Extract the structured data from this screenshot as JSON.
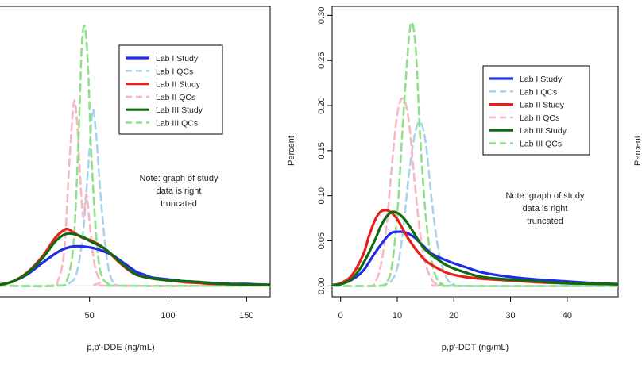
{
  "chart_data": [
    {
      "type": "line",
      "xlabel": "p,p'-DDE (ng/mL)",
      "ylabel": "",
      "xlim": [
        -8,
        165
      ],
      "ylim": [
        -0.012,
        0.305
      ],
      "x_ticks": [
        50,
        100,
        150
      ],
      "y_ticks": [],
      "grid": false,
      "legend_position": "top-right",
      "note": [
        "Note: graph of study",
        "data is right",
        "truncated"
      ],
      "series": [
        {
          "name": "Lab I Study",
          "color": "#1f2ee6",
          "style": "solid",
          "points": [
            [
              -8,
              0.001
            ],
            [
              0,
              0.004
            ],
            [
              10,
              0.012
            ],
            [
              20,
              0.025
            ],
            [
              30,
              0.037
            ],
            [
              35,
              0.041
            ],
            [
              40,
              0.043
            ],
            [
              45,
              0.043
            ],
            [
              50,
              0.042
            ],
            [
              55,
              0.04
            ],
            [
              60,
              0.037
            ],
            [
              65,
              0.033
            ],
            [
              70,
              0.027
            ],
            [
              75,
              0.021
            ],
            [
              80,
              0.015
            ],
            [
              85,
              0.012
            ],
            [
              90,
              0.009
            ],
            [
              100,
              0.007
            ],
            [
              110,
              0.005
            ],
            [
              120,
              0.004
            ],
            [
              130,
              0.003
            ],
            [
              140,
              0.002
            ],
            [
              150,
              0.002
            ],
            [
              165,
              0.001
            ]
          ]
        },
        {
          "name": "Lab I QCs",
          "color": "#a9d4e8",
          "style": "dashed",
          "points": [
            [
              -8,
              0.0
            ],
            [
              30,
              0.0
            ],
            [
              38,
              0.004
            ],
            [
              42,
              0.015
            ],
            [
              46,
              0.06
            ],
            [
              50,
              0.15
            ],
            [
              52,
              0.192
            ],
            [
              54,
              0.17
            ],
            [
              57,
              0.1
            ],
            [
              60,
              0.045
            ],
            [
              63,
              0.012
            ],
            [
              67,
              0.002
            ],
            [
              75,
              0.0
            ],
            [
              165,
              0.0
            ]
          ]
        },
        {
          "name": "Lab II Study",
          "color": "#e8201a",
          "style": "solid",
          "points": [
            [
              -8,
              0.001
            ],
            [
              0,
              0.004
            ],
            [
              10,
              0.014
            ],
            [
              20,
              0.032
            ],
            [
              28,
              0.052
            ],
            [
              33,
              0.06
            ],
            [
              36,
              0.062
            ],
            [
              40,
              0.058
            ],
            [
              45,
              0.053
            ],
            [
              50,
              0.05
            ],
            [
              55,
              0.046
            ],
            [
              60,
              0.04
            ],
            [
              65,
              0.032
            ],
            [
              70,
              0.024
            ],
            [
              75,
              0.017
            ],
            [
              80,
              0.012
            ],
            [
              90,
              0.008
            ],
            [
              100,
              0.006
            ],
            [
              110,
              0.004
            ],
            [
              120,
              0.003
            ],
            [
              130,
              0.002
            ],
            [
              165,
              0.001
            ]
          ]
        },
        {
          "name": "Lab II QCs",
          "color": "#f5b8c4",
          "style": "dashed",
          "points": [
            [
              -8,
              0.0
            ],
            [
              25,
              0.0
            ],
            [
              30,
              0.006
            ],
            [
              34,
              0.04
            ],
            [
              37,
              0.13
            ],
            [
              40,
              0.2
            ],
            [
              42,
              0.18
            ],
            [
              44,
              0.12
            ],
            [
              46,
              0.075
            ],
            [
              48,
              0.1
            ],
            [
              50,
              0.07
            ],
            [
              53,
              0.025
            ],
            [
              57,
              0.005
            ],
            [
              62,
              0.0
            ],
            [
              165,
              0.0
            ]
          ]
        },
        {
          "name": "Lab III Study",
          "color": "#0f6a10",
          "style": "solid",
          "points": [
            [
              -8,
              0.001
            ],
            [
              0,
              0.004
            ],
            [
              10,
              0.013
            ],
            [
              20,
              0.03
            ],
            [
              28,
              0.048
            ],
            [
              33,
              0.055
            ],
            [
              37,
              0.057
            ],
            [
              41,
              0.056
            ],
            [
              46,
              0.053
            ],
            [
              50,
              0.049
            ],
            [
              55,
              0.045
            ],
            [
              60,
              0.04
            ],
            [
              65,
              0.033
            ],
            [
              70,
              0.025
            ],
            [
              75,
              0.018
            ],
            [
              80,
              0.012
            ],
            [
              90,
              0.008
            ],
            [
              100,
              0.006
            ],
            [
              110,
              0.005
            ],
            [
              120,
              0.004
            ],
            [
              135,
              0.002
            ],
            [
              165,
              0.001
            ]
          ]
        },
        {
          "name": "Lab III QCs",
          "color": "#8fe08a",
          "style": "dashed",
          "points": [
            [
              -8,
              0.0
            ],
            [
              30,
              0.0
            ],
            [
              36,
              0.008
            ],
            [
              40,
              0.05
            ],
            [
              43,
              0.16
            ],
            [
              45,
              0.26
            ],
            [
              47,
              0.283
            ],
            [
              49,
              0.24
            ],
            [
              51,
              0.15
            ],
            [
              54,
              0.06
            ],
            [
              57,
              0.015
            ],
            [
              62,
              0.002
            ],
            [
              70,
              0.0
            ],
            [
              165,
              0.0
            ]
          ]
        }
      ]
    },
    {
      "type": "line",
      "xlabel": "p,p'-DDT (ng/mL)",
      "ylabel": "Percent",
      "xlim": [
        -1.5,
        49
      ],
      "ylim": [
        -0.012,
        0.31
      ],
      "x_ticks": [
        0,
        10,
        20,
        30,
        40
      ],
      "y_ticks": [
        "0.00",
        "0.05",
        "0.10",
        "0.15",
        "0.20",
        "0.25",
        "0.30"
      ],
      "grid": false,
      "legend_position": "top-right",
      "note": [
        "Note: graph of study",
        "data is right",
        "truncated"
      ],
      "series": [
        {
          "name": "Lab I Study",
          "color": "#1f2ee6",
          "style": "solid",
          "points": [
            [
              -1.5,
              0.001
            ],
            [
              0,
              0.002
            ],
            [
              2,
              0.007
            ],
            [
              4,
              0.017
            ],
            [
              6,
              0.036
            ],
            [
              8,
              0.053
            ],
            [
              9,
              0.059
            ],
            [
              10,
              0.06
            ],
            [
              11,
              0.06
            ],
            [
              12,
              0.058
            ],
            [
              13,
              0.054
            ],
            [
              14,
              0.048
            ],
            [
              15,
              0.042
            ],
            [
              16,
              0.036
            ],
            [
              18,
              0.03
            ],
            [
              20,
              0.025
            ],
            [
              22,
              0.021
            ],
            [
              25,
              0.015
            ],
            [
              30,
              0.01
            ],
            [
              35,
              0.007
            ],
            [
              40,
              0.005
            ],
            [
              45,
              0.003
            ],
            [
              49,
              0.002
            ]
          ]
        },
        {
          "name": "Lab I QCs",
          "color": "#a9d4e8",
          "style": "dashed",
          "points": [
            [
              -1.5,
              0.0
            ],
            [
              6,
              0.0
            ],
            [
              8,
              0.002
            ],
            [
              9,
              0.006
            ],
            [
              10,
              0.02
            ],
            [
              11,
              0.06
            ],
            [
              12,
              0.12
            ],
            [
              13,
              0.165
            ],
            [
              14,
              0.182
            ],
            [
              15,
              0.16
            ],
            [
              16,
              0.1
            ],
            [
              17,
              0.05
            ],
            [
              18,
              0.02
            ],
            [
              19,
              0.006
            ],
            [
              20,
              0.002
            ],
            [
              22,
              0.0
            ],
            [
              49,
              0.0
            ]
          ]
        },
        {
          "name": "Lab II Study",
          "color": "#e8201a",
          "style": "solid",
          "points": [
            [
              -1.5,
              0.001
            ],
            [
              0,
              0.003
            ],
            [
              2,
              0.012
            ],
            [
              4,
              0.035
            ],
            [
              5,
              0.055
            ],
            [
              6,
              0.072
            ],
            [
              7,
              0.082
            ],
            [
              8,
              0.084
            ],
            [
              9,
              0.081
            ],
            [
              10,
              0.074
            ],
            [
              11,
              0.063
            ],
            [
              12,
              0.052
            ],
            [
              13,
              0.043
            ],
            [
              14,
              0.035
            ],
            [
              15,
              0.028
            ],
            [
              17,
              0.02
            ],
            [
              19,
              0.014
            ],
            [
              22,
              0.01
            ],
            [
              25,
              0.008
            ],
            [
              30,
              0.006
            ],
            [
              35,
              0.004
            ],
            [
              40,
              0.003
            ],
            [
              49,
              0.002
            ]
          ]
        },
        {
          "name": "Lab II QCs",
          "color": "#f5b8c4",
          "style": "dashed",
          "points": [
            [
              -1.5,
              0.0
            ],
            [
              5,
              0.0
            ],
            [
              6,
              0.003
            ],
            [
              7,
              0.02
            ],
            [
              8,
              0.06
            ],
            [
              9,
              0.13
            ],
            [
              10,
              0.19
            ],
            [
              11,
              0.208
            ],
            [
              12,
              0.185
            ],
            [
              13,
              0.12
            ],
            [
              14,
              0.06
            ],
            [
              15,
              0.025
            ],
            [
              16,
              0.008
            ],
            [
              17,
              0.002
            ],
            [
              19,
              0.0
            ],
            [
              49,
              0.0
            ]
          ]
        },
        {
          "name": "Lab III Study",
          "color": "#0f6a10",
          "style": "solid",
          "points": [
            [
              -1.5,
              0.001
            ],
            [
              0,
              0.002
            ],
            [
              2,
              0.008
            ],
            [
              4,
              0.025
            ],
            [
              6,
              0.05
            ],
            [
              7,
              0.065
            ],
            [
              8,
              0.076
            ],
            [
              9,
              0.082
            ],
            [
              10,
              0.081
            ],
            [
              11,
              0.076
            ],
            [
              12,
              0.068
            ],
            [
              13,
              0.058
            ],
            [
              14,
              0.048
            ],
            [
              15,
              0.04
            ],
            [
              17,
              0.03
            ],
            [
              19,
              0.022
            ],
            [
              22,
              0.015
            ],
            [
              25,
              0.01
            ],
            [
              30,
              0.007
            ],
            [
              35,
              0.005
            ],
            [
              40,
              0.003
            ],
            [
              49,
              0.002
            ]
          ]
        },
        {
          "name": "Lab III QCs",
          "color": "#8fe08a",
          "style": "dashed",
          "points": [
            [
              -1.5,
              0.0
            ],
            [
              7,
              0.0
            ],
            [
              8,
              0.003
            ],
            [
              9,
              0.02
            ],
            [
              10,
              0.08
            ],
            [
              11,
              0.18
            ],
            [
              12,
              0.27
            ],
            [
              12.6,
              0.292
            ],
            [
              13.3,
              0.26
            ],
            [
              14,
              0.17
            ],
            [
              15,
              0.08
            ],
            [
              16,
              0.03
            ],
            [
              17,
              0.008
            ],
            [
              18,
              0.002
            ],
            [
              20,
              0.0
            ],
            [
              49,
              0.0
            ]
          ]
        }
      ]
    }
  ]
}
